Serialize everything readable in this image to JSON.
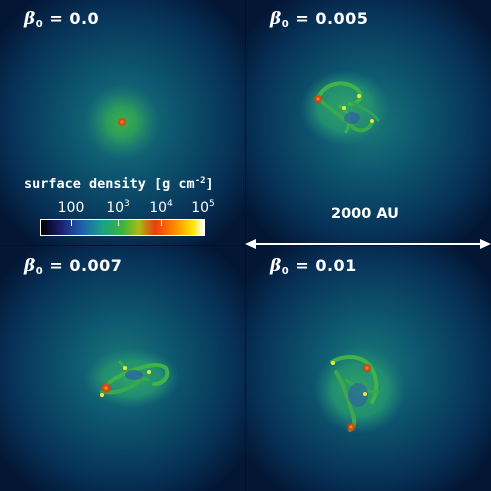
{
  "panels": [
    {
      "beta_symbol": "β",
      "beta_subscript": "0",
      "equals": "=",
      "value": "0.0"
    },
    {
      "beta_symbol": "β",
      "beta_subscript": "0",
      "equals": "=",
      "value": "0.005"
    },
    {
      "beta_symbol": "β",
      "beta_subscript": "0",
      "equals": "=",
      "value": "0.007"
    },
    {
      "beta_symbol": "β",
      "beta_subscript": "0",
      "equals": "=",
      "value": "0.01"
    }
  ],
  "colorbar": {
    "title_main": "surface density [g cm",
    "title_exp": "-2",
    "title_end": "]",
    "ticks": [
      {
        "base": "100",
        "exp": ""
      },
      {
        "base": "10",
        "exp": "3"
      },
      {
        "base": "10",
        "exp": "4"
      },
      {
        "base": "10",
        "exp": "5"
      }
    ],
    "colors": [
      "#000000",
      "#1b1f6e",
      "#1f5fae",
      "#1aa384",
      "#3cb33c",
      "#a9ba17",
      "#e83e10",
      "#ff8a00",
      "#ffe300",
      "#ffffff"
    ]
  },
  "scale_bar": {
    "label": "2000 AU"
  },
  "colors": {
    "background": "#02112a",
    "gas": "#2aa074",
    "core": "#e84a1a",
    "text": "#ffffff"
  }
}
